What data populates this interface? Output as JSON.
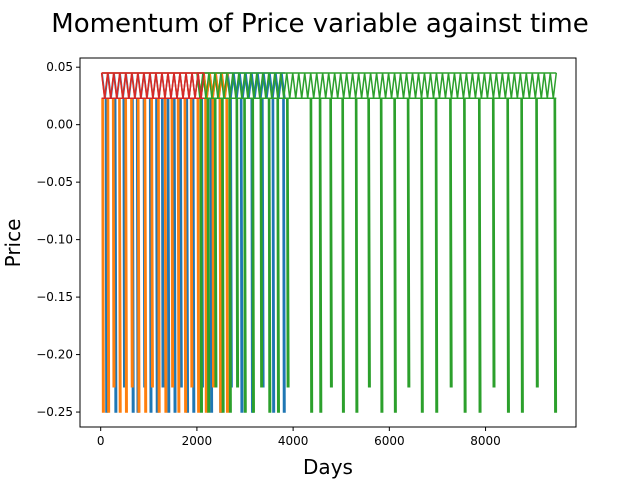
{
  "chart_data": {
    "type": "line",
    "title": "Momentum of Price variable against time",
    "xlabel": "Days",
    "ylabel": "Price",
    "xlim": [
      -430,
      9880
    ],
    "ylim": [
      -0.263,
      0.058
    ],
    "x_ticks": [
      0,
      2000,
      4000,
      6000,
      8000
    ],
    "x_tick_labels": [
      "0",
      "2000",
      "4000",
      "6000",
      "8000"
    ],
    "y_ticks": [
      0.05,
      0.0,
      -0.05,
      -0.1,
      -0.15,
      -0.2,
      -0.25
    ],
    "y_tick_labels": [
      "0.05",
      "0.00",
      "−0.05",
      "−0.10",
      "−0.15",
      "−0.20",
      "−0.25"
    ],
    "grid": false,
    "legend": "none",
    "series": [
      {
        "color": "#1f77b4",
        "x_range": [
          30,
          3830
        ],
        "high_levels": [
          0.045,
          0.023
        ],
        "spikes_x": [
          110,
          300,
          480,
          660,
          760,
          900,
          1030,
          1160,
          1280,
          1400,
          1530,
          1660,
          1790,
          1920,
          2100,
          2290,
          2480,
          2700,
          2920,
          3140,
          3360,
          3580,
          3800
        ],
        "spike_min": -0.25,
        "spike_alt_min": -0.228
      },
      {
        "color": "#ff7f0e",
        "x_range": [
          20,
          2650
        ],
        "high_levels": [
          0.045,
          0.023
        ],
        "spikes_x": [
          40,
          150,
          260,
          390,
          520,
          640,
          780,
          920,
          1060,
          1200,
          1340,
          1480,
          1610,
          1750,
          1880,
          2020,
          2180,
          2330,
          2480,
          2620
        ],
        "spike_min": -0.25,
        "spike_alt_min": -0.228
      },
      {
        "color": "#2ca02c",
        "x_range": [
          2000,
          9470
        ],
        "high_levels": [
          0.045,
          0.023
        ],
        "spikes_x": [
          2080,
          2230,
          2380,
          2530,
          2680,
          2830,
          2990,
          3160,
          3330,
          3500,
          3680,
          3880,
          4370,
          4560,
          4780,
          5030,
          5310,
          5570,
          5830,
          6110,
          6390,
          6670,
          6970,
          7270,
          7560,
          7870,
          8160,
          8460,
          8750,
          9060,
          9440
        ],
        "spike_min": -0.25,
        "spike_alt_min": -0.228
      },
      {
        "color": "#d62728",
        "x_range": [
          20,
          2150
        ],
        "high_levels": [
          0.045,
          0.023
        ],
        "spikes_x": [],
        "spike_min": 0.023,
        "spike_alt_min": 0.023
      }
    ]
  }
}
